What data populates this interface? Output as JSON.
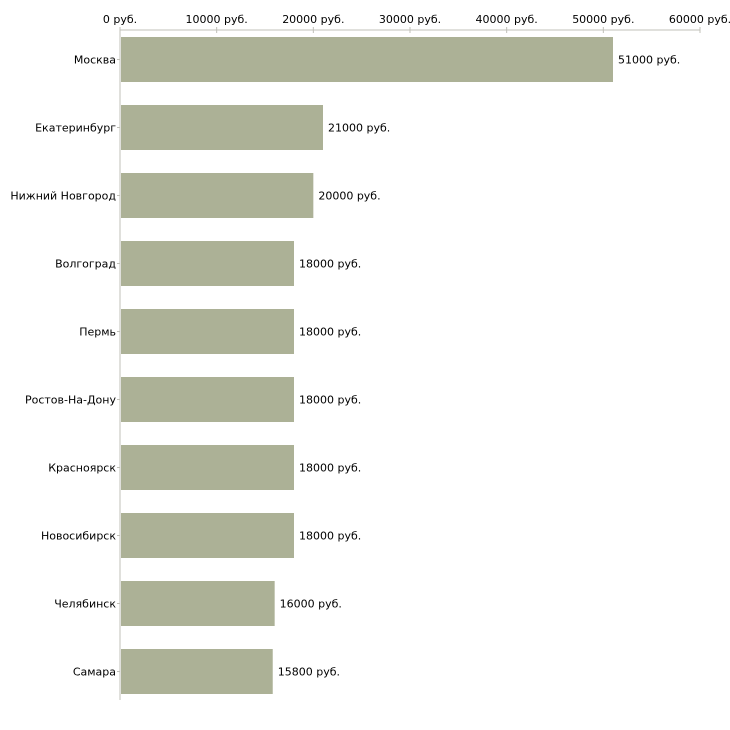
{
  "chart_data": {
    "type": "bar",
    "orientation": "horizontal",
    "categories": [
      "Москва",
      "Екатеринбург",
      "Нижний Новгород",
      "Волгоград",
      "Пермь",
      "Ростов-На-Дону",
      "Красноярск",
      "Новосибирск",
      "Челябинск",
      "Самара"
    ],
    "values": [
      51000,
      21000,
      20000,
      18000,
      18000,
      18000,
      18000,
      18000,
      16000,
      15800
    ],
    "value_labels": [
      "51000 руб.",
      "21000 руб.",
      "20000 руб.",
      "18000 руб.",
      "18000 руб.",
      "18000 руб.",
      "18000 руб.",
      "18000 руб.",
      "16000 руб.",
      "15800 руб."
    ],
    "ticks": [
      0,
      10000,
      20000,
      30000,
      40000,
      50000,
      60000
    ],
    "tick_labels": [
      "0 руб.",
      "10000 руб.",
      "20000 руб.",
      "30000 руб.",
      "40000 руб.",
      "50000 руб.",
      "60000 руб."
    ],
    "xlim": [
      0,
      60000
    ],
    "axis_position": "top",
    "bar_color": "#acb196",
    "axis_color": "#c0c0b8",
    "title": "",
    "xlabel": "",
    "ylabel": ""
  }
}
